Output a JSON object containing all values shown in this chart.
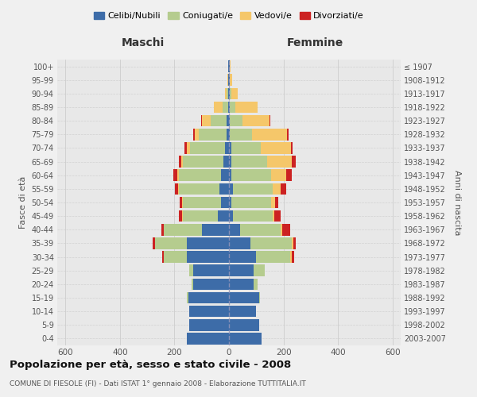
{
  "age_groups": [
    "0-4",
    "5-9",
    "10-14",
    "15-19",
    "20-24",
    "25-29",
    "30-34",
    "35-39",
    "40-44",
    "45-49",
    "50-54",
    "55-59",
    "60-64",
    "65-69",
    "70-74",
    "75-79",
    "80-84",
    "85-89",
    "90-94",
    "95-99",
    "100+"
  ],
  "birth_years": [
    "2003-2007",
    "1998-2002",
    "1993-1997",
    "1988-1992",
    "1983-1987",
    "1978-1982",
    "1973-1977",
    "1968-1972",
    "1963-1967",
    "1958-1962",
    "1953-1957",
    "1948-1952",
    "1943-1947",
    "1938-1942",
    "1933-1937",
    "1928-1932",
    "1923-1927",
    "1918-1922",
    "1913-1917",
    "1908-1912",
    "≤ 1907"
  ],
  "colors": {
    "celibi": "#3d6ca8",
    "coniugati": "#b5cc8e",
    "vedovi": "#f5c76a",
    "divorziati": "#cc2222"
  },
  "maschi": {
    "celibi": [
      155,
      145,
      145,
      150,
      130,
      130,
      155,
      155,
      100,
      40,
      30,
      35,
      30,
      20,
      14,
      10,
      8,
      4,
      3,
      4,
      2
    ],
    "coniugati": [
      0,
      0,
      0,
      5,
      8,
      15,
      85,
      115,
      140,
      130,
      140,
      150,
      155,
      150,
      130,
      100,
      60,
      20,
      5,
      0,
      0
    ],
    "vedovi": [
      0,
      0,
      0,
      0,
      0,
      0,
      0,
      0,
      0,
      2,
      2,
      2,
      5,
      5,
      10,
      15,
      30,
      30,
      8,
      2,
      0
    ],
    "divorziati": [
      0,
      0,
      0,
      0,
      0,
      0,
      5,
      10,
      8,
      12,
      10,
      12,
      15,
      10,
      10,
      5,
      3,
      0,
      0,
      0,
      0
    ]
  },
  "femmine": {
    "celibi": [
      120,
      110,
      100,
      110,
      90,
      90,
      100,
      80,
      40,
      15,
      10,
      15,
      10,
      10,
      8,
      4,
      4,
      4,
      3,
      2,
      2
    ],
    "coniugati": [
      0,
      0,
      0,
      5,
      15,
      40,
      125,
      150,
      150,
      145,
      145,
      145,
      145,
      130,
      110,
      80,
      45,
      20,
      5,
      0,
      0
    ],
    "vedovi": [
      0,
      0,
      0,
      0,
      0,
      0,
      5,
      5,
      5,
      5,
      15,
      30,
      55,
      90,
      110,
      130,
      100,
      80,
      25,
      10,
      5
    ],
    "divorziati": [
      0,
      0,
      0,
      0,
      0,
      0,
      10,
      10,
      30,
      25,
      10,
      20,
      20,
      15,
      5,
      5,
      2,
      0,
      0,
      0,
      0
    ]
  },
  "title": "Popolazione per età, sesso e stato civile - 2008",
  "subtitle": "COMUNE DI FIESOLE (FI) - Dati ISTAT 1° gennaio 2008 - Elaborazione TUTTITALIA.IT",
  "xlabel_left": "Maschi",
  "xlabel_right": "Femmine",
  "ylabel_left": "Fasce di età",
  "ylabel_right": "Anni di nascita",
  "legend_labels": [
    "Celibi/Nubili",
    "Coniugati/e",
    "Vedovi/e",
    "Divorziati/e"
  ],
  "xlim": 630,
  "background_color": "#f0f0f0",
  "plot_bg_color": "#e8e8e8"
}
